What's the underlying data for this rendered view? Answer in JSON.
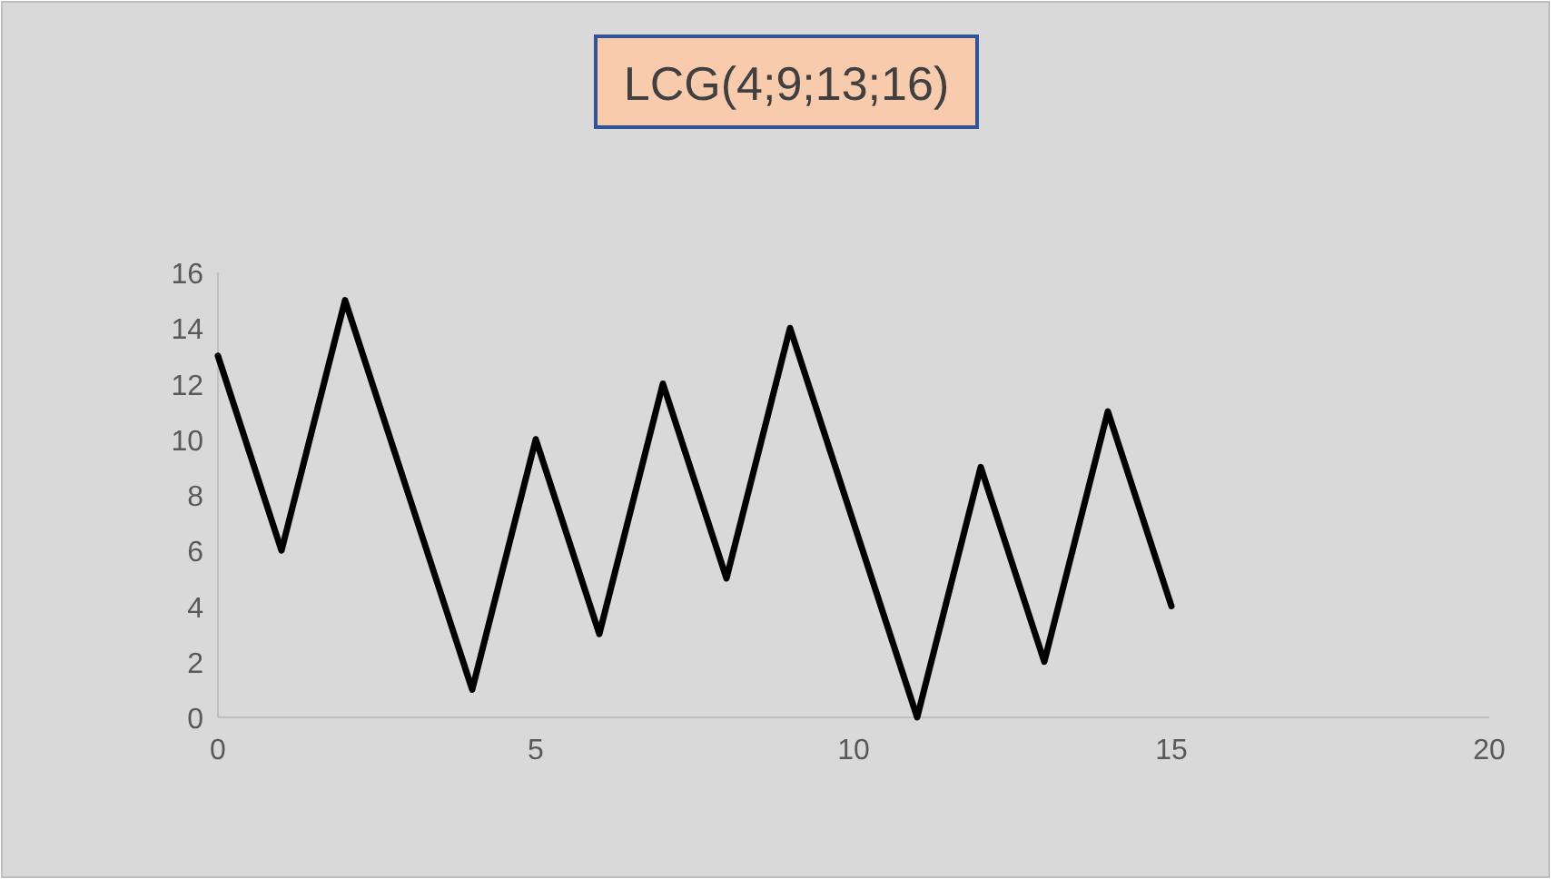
{
  "chart_data": {
    "type": "line",
    "title": "LCG(4;9;13;16)",
    "x": [
      0,
      1,
      2,
      3,
      4,
      5,
      6,
      7,
      8,
      9,
      10,
      11,
      12,
      13,
      14,
      15
    ],
    "series": [
      {
        "color": "#000000",
        "values": [
          13,
          6,
          15,
          8,
          1,
          10,
          3,
          12,
          5,
          14,
          7,
          0,
          9,
          2,
          11,
          4
        ]
      }
    ],
    "xlim": [
      0,
      20
    ],
    "xticks": [
      0,
      5,
      10,
      15,
      20
    ],
    "ylim": [
      0,
      16
    ],
    "yticks": [
      0,
      2,
      4,
      6,
      8,
      10,
      12,
      14,
      16
    ],
    "grid": false,
    "marker": "none",
    "line_style": "solid"
  }
}
